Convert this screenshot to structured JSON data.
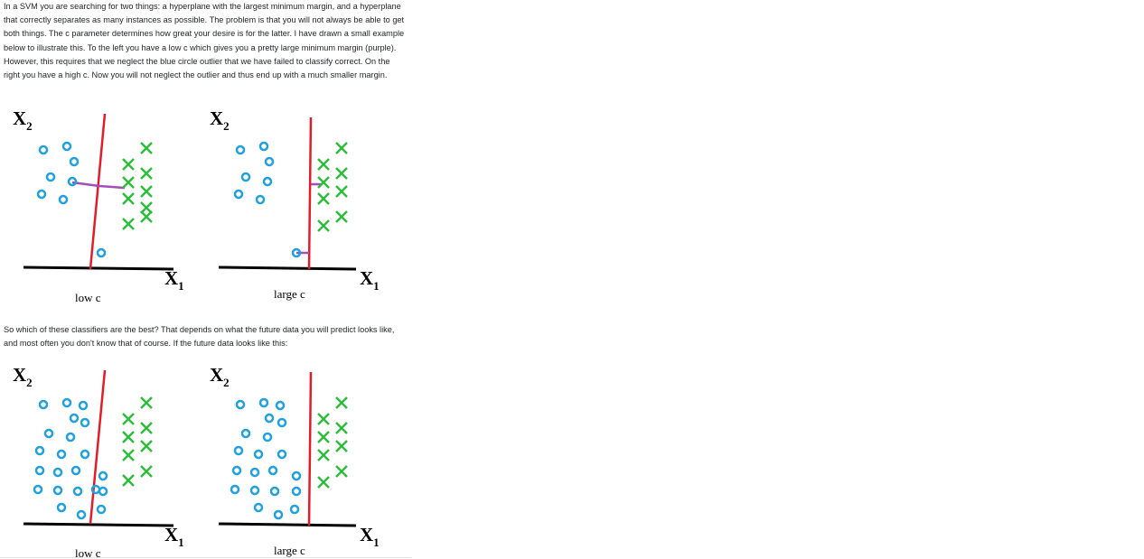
{
  "paragraphs": {
    "intro": "In a SVM you are searching for two things: a hyperplane with the largest minimum margin, and a hyperplane that correctly separates as many instances as possible. The problem is that you will not always be able to get both things. The c parameter determines how great your desire is for the latter. I have drawn a small example below to illustrate this. To the left you have a low c which gives you a pretty large minimum margin (purple). However, this requires that we neglect the blue circle outlier that we have failed to classify correct. On the right you have a high c. Now you will not neglect the outlier and thus end up with a much smaller margin.",
    "followup": "So which of these classifiers are the best? That depends on what the future data you will predict looks like, and most often you don't know that of course. If the future data looks like this:"
  },
  "figures": {
    "top": {
      "left": {
        "ylabel_base": "X",
        "ylabel_sub": "2",
        "xlabel_base": "X",
        "xlabel_sub": "1",
        "caption": "low c"
      },
      "right": {
        "ylabel_base": "X",
        "ylabel_sub": "2",
        "xlabel_base": "X",
        "xlabel_sub": "1",
        "caption": "large c"
      }
    },
    "bottom": {
      "left": {
        "ylabel_base": "X",
        "ylabel_sub": "2",
        "xlabel_base": "X",
        "xlabel_sub": "1",
        "caption": "low c"
      },
      "right": {
        "ylabel_base": "X",
        "ylabel_sub": "2",
        "xlabel_base": "X",
        "xlabel_sub": "1",
        "caption": "large c"
      }
    }
  },
  "colors": {
    "circle": "#1fa0e0",
    "cross": "#2ebc3c",
    "hyperplane": "#e21d2a",
    "margin": "#a24db8",
    "axis": "#000000"
  }
}
